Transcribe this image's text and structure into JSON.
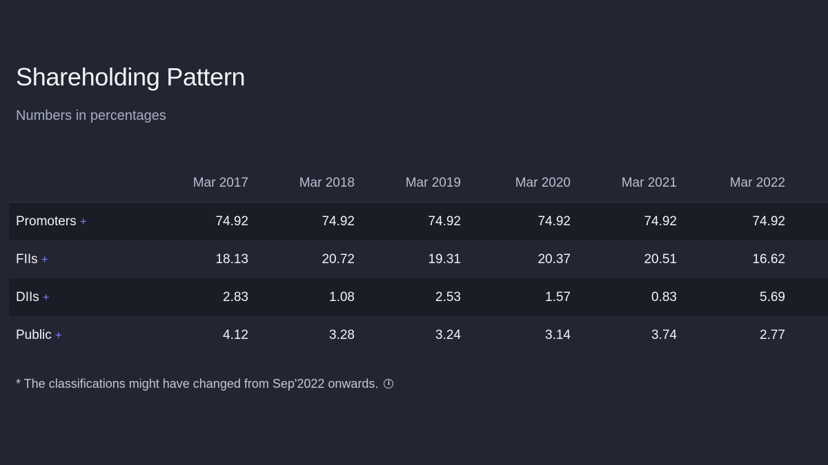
{
  "header": {
    "title": "Shareholding Pattern",
    "subtitle": "Numbers in percentages"
  },
  "table": {
    "columns": [
      "Mar 2017",
      "Mar 2018",
      "Mar 2019",
      "Mar 2020",
      "Mar 2021",
      "Mar 2022"
    ],
    "expand_symbol": "+",
    "rows": [
      {
        "label": "Promoters",
        "values": [
          "74.92",
          "74.92",
          "74.92",
          "74.92",
          "74.92",
          "74.92"
        ]
      },
      {
        "label": "FIIs",
        "values": [
          "18.13",
          "20.72",
          "19.31",
          "20.37",
          "20.51",
          "16.62"
        ]
      },
      {
        "label": "DIIs",
        "values": [
          "2.83",
          "1.08",
          "2.53",
          "1.57",
          "0.83",
          "5.69"
        ]
      },
      {
        "label": "Public",
        "values": [
          "4.12",
          "3.28",
          "3.24",
          "3.14",
          "3.74",
          "2.77"
        ]
      }
    ]
  },
  "footnote": {
    "text": "* The classifications might have changed from Sep'2022 onwards.",
    "info_icon": "info-icon",
    "info_glyph": "i"
  },
  "colors": {
    "background": "#232632",
    "row_shade": "#1b1d26",
    "accent": "#7b83ff"
  }
}
